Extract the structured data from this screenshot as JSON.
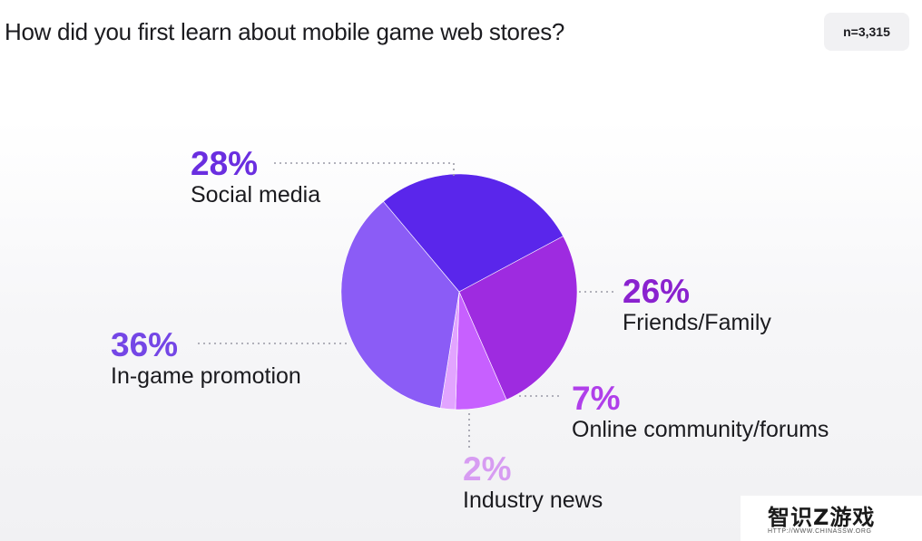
{
  "chart_data": {
    "type": "pie",
    "title": "How did you first learn about mobile game web stores?",
    "sample_size": "n=3,315",
    "slices": [
      {
        "name": "Social media",
        "pct_label": "28%",
        "value": 28,
        "color": "#5a26eb",
        "label_color": "#6a2ee0"
      },
      {
        "name": "Friends/Family",
        "pct_label": "26%",
        "value": 26,
        "color": "#9e2be0",
        "label_color": "#8a22cf"
      },
      {
        "name": "Online community/forums",
        "pct_label": "7%",
        "value": 7,
        "color": "#c760ff",
        "label_color": "#b03fea"
      },
      {
        "name": "Industry news",
        "pct_label": "2%",
        "value": 2,
        "color": "#e2a4ff",
        "label_color": "#d79cf2"
      },
      {
        "name": "In-game promotion",
        "pct_label": "36%",
        "value": 36,
        "color": "#8b5cf6",
        "label_color": "#7446e6"
      }
    ]
  },
  "watermark": {
    "brand": "智识Z游戏",
    "url": "HTTP://WWW.CHINASSW.ORG"
  }
}
